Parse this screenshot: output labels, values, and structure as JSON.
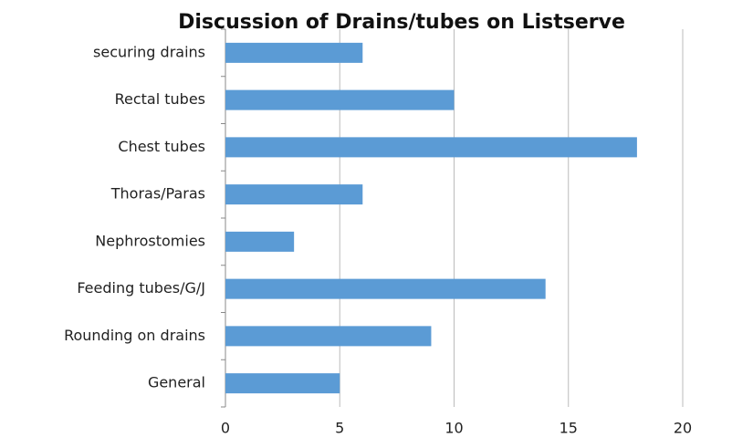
{
  "chart_data": {
    "type": "bar",
    "orientation": "horizontal",
    "title": "Discussion of Drains/tubes on Listserve",
    "categories": [
      "securing drains",
      "Rectal tubes",
      "Chest tubes",
      "Thoras/Paras",
      "Nephrostomies",
      "Feeding tubes/G/J",
      "Rounding on drains",
      "General"
    ],
    "values": [
      6,
      10,
      18,
      6,
      3,
      14,
      9,
      5
    ],
    "color": "#5b9bd5",
    "xlim": [
      0,
      20
    ],
    "xticks": [
      0,
      5,
      10,
      15,
      20
    ],
    "grid": true
  }
}
